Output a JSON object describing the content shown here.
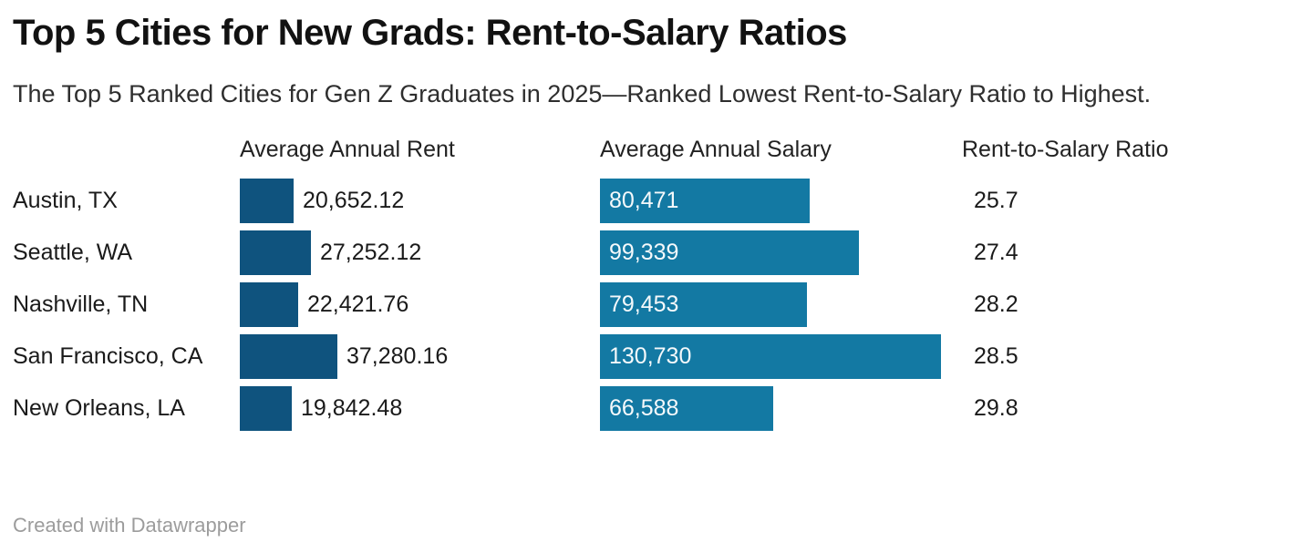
{
  "title": "Top 5 Cities for New Grads: Rent-to-Salary Ratios",
  "subtitle": "The Top 5 Ranked Cities for Gen Z Graduates in 2025—Ranked Lowest Rent-to-Salary Ratio to Highest.",
  "footer": {
    "credit": "Created with Datawrapper"
  },
  "colors": {
    "rent_bar": "#0f537e",
    "salary_bar": "#1379a3",
    "salary_bar_text": "#f5f9fb",
    "body_text": "#1a1a1a",
    "footer_text": "#9c9c9c"
  },
  "chart_data": {
    "type": "table",
    "title": "Top 5 Cities for New Grads: Rent-to-Salary Ratios",
    "subtitle": "The Top 5 Ranked Cities for Gen Z Graduates in 2025—Ranked Lowest Rent-to-Salary Ratio to Highest.",
    "column_headers": {
      "rent": "Average Annual Rent",
      "salary": "Average Annual Salary",
      "ratio": "Rent-to-Salary Ratio"
    },
    "bar_scaling": {
      "rent_max": 37280.16,
      "salary_max": 130730
    },
    "rows": [
      {
        "city": "Austin, TX",
        "rent": 20652.12,
        "rent_label": "20,652.12",
        "salary": 80471,
        "salary_label": "80,471",
        "ratio": 25.7,
        "ratio_label": "25.7"
      },
      {
        "city": "Seattle, WA",
        "rent": 27252.12,
        "rent_label": "27,252.12",
        "salary": 99339,
        "salary_label": "99,339",
        "ratio": 27.4,
        "ratio_label": "27.4"
      },
      {
        "city": "Nashville, TN",
        "rent": 22421.76,
        "rent_label": "22,421.76",
        "salary": 79453,
        "salary_label": "79,453",
        "ratio": 28.2,
        "ratio_label": "28.2"
      },
      {
        "city": "San Francisco, CA",
        "rent": 37280.16,
        "rent_label": "37,280.16",
        "salary": 130730,
        "salary_label": "130,730",
        "ratio": 28.5,
        "ratio_label": "28.5"
      },
      {
        "city": "New Orleans, LA",
        "rent": 19842.48,
        "rent_label": "19,842.48",
        "salary": 66588,
        "salary_label": "66,588",
        "ratio": 29.8,
        "ratio_label": "29.8"
      }
    ]
  }
}
